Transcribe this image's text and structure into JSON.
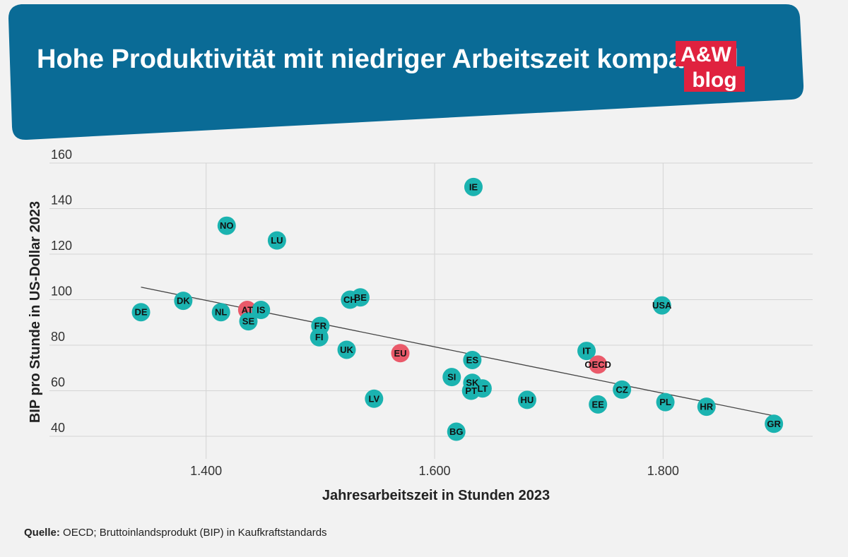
{
  "header": {
    "title": "Hohe Produktivität mit niedriger Arbeitszeit kompatibel",
    "logo_top": "A&W",
    "logo_bottom": "blog"
  },
  "source": {
    "label": "Quelle:",
    "text": " OECD; Bruttoinlandsprodukt (BIP) in Kaufkraftstandards"
  },
  "colors": {
    "banner": "#0a6b96",
    "logo": "#e0223f",
    "country": "#1bb3b0",
    "aggregate": "#ea5a6a",
    "trend": "#444444"
  },
  "chart_data": {
    "type": "scatter",
    "xlabel": "Jahresarbeitszeit in Stunden 2023",
    "ylabel": "BIP pro Stunde in US-Dollar 2023",
    "xlim": [
      1300,
      1900
    ],
    "ylim": [
      40,
      160
    ],
    "xticks": [
      {
        "v": 1400,
        "label": "1.400"
      },
      {
        "v": 1600,
        "label": "1.600"
      },
      {
        "v": 1800,
        "label": "1.800"
      }
    ],
    "yticks": [
      {
        "v": 40,
        "label": "40"
      },
      {
        "v": 60,
        "label": "60"
      },
      {
        "v": 80,
        "label": "80"
      },
      {
        "v": 100,
        "label": "100"
      },
      {
        "v": 120,
        "label": "120"
      },
      {
        "v": 140,
        "label": "140"
      },
      {
        "v": 160,
        "label": "160"
      }
    ],
    "grid": true,
    "trendline": {
      "x": [
        1343,
        1897
      ],
      "y": [
        105.5,
        49
      ]
    },
    "points": [
      {
        "label": "DE",
        "x": 1343,
        "y": 94.5,
        "group": "country"
      },
      {
        "label": "DK",
        "x": 1380,
        "y": 99.5,
        "group": "country"
      },
      {
        "label": "NO",
        "x": 1418,
        "y": 132.5,
        "group": "country"
      },
      {
        "label": "NL",
        "x": 1413,
        "y": 94.5,
        "group": "country"
      },
      {
        "label": "AT",
        "x": 1436,
        "y": 95.5,
        "group": "aggregate"
      },
      {
        "label": "IS",
        "x": 1448,
        "y": 95.5,
        "group": "country"
      },
      {
        "label": "SE",
        "x": 1437,
        "y": 90.5,
        "group": "country"
      },
      {
        "label": "LU",
        "x": 1462,
        "y": 126,
        "group": "country"
      },
      {
        "label": "FR",
        "x": 1500,
        "y": 88.5,
        "group": "country"
      },
      {
        "label": "FI",
        "x": 1499,
        "y": 83.5,
        "group": "country"
      },
      {
        "label": "CH",
        "x": 1526,
        "y": 100,
        "group": "country"
      },
      {
        "label": "BE",
        "x": 1535,
        "y": 101,
        "group": "country"
      },
      {
        "label": "UK",
        "x": 1523,
        "y": 78,
        "group": "country"
      },
      {
        "label": "EU",
        "x": 1570,
        "y": 76.5,
        "group": "aggregate"
      },
      {
        "label": "LV",
        "x": 1547,
        "y": 56.5,
        "group": "country"
      },
      {
        "label": "IE",
        "x": 1634,
        "y": 149.5,
        "group": "country"
      },
      {
        "label": "ES",
        "x": 1633,
        "y": 73.5,
        "group": "country"
      },
      {
        "label": "SI",
        "x": 1615,
        "y": 66,
        "group": "country"
      },
      {
        "label": "SK",
        "x": 1633,
        "y": 63.5,
        "group": "country"
      },
      {
        "label": "PT",
        "x": 1632,
        "y": 60,
        "group": "country"
      },
      {
        "label": "LT",
        "x": 1642,
        "y": 61,
        "group": "country"
      },
      {
        "label": "BG",
        "x": 1619,
        "y": 42,
        "group": "country"
      },
      {
        "label": "HU",
        "x": 1681,
        "y": 56,
        "group": "country"
      },
      {
        "label": "IT",
        "x": 1733,
        "y": 77.5,
        "group": "country"
      },
      {
        "label": "OECD",
        "x": 1743,
        "y": 71.5,
        "group": "aggregate"
      },
      {
        "label": "USA",
        "x": 1799,
        "y": 97.5,
        "group": "country"
      },
      {
        "label": "CZ",
        "x": 1764,
        "y": 60.5,
        "group": "country"
      },
      {
        "label": "EE",
        "x": 1743,
        "y": 54,
        "group": "country"
      },
      {
        "label": "PL",
        "x": 1802,
        "y": 55,
        "group": "country"
      },
      {
        "label": "HR",
        "x": 1838,
        "y": 53,
        "group": "country"
      },
      {
        "label": "GR",
        "x": 1897,
        "y": 45.5,
        "group": "country"
      }
    ]
  }
}
